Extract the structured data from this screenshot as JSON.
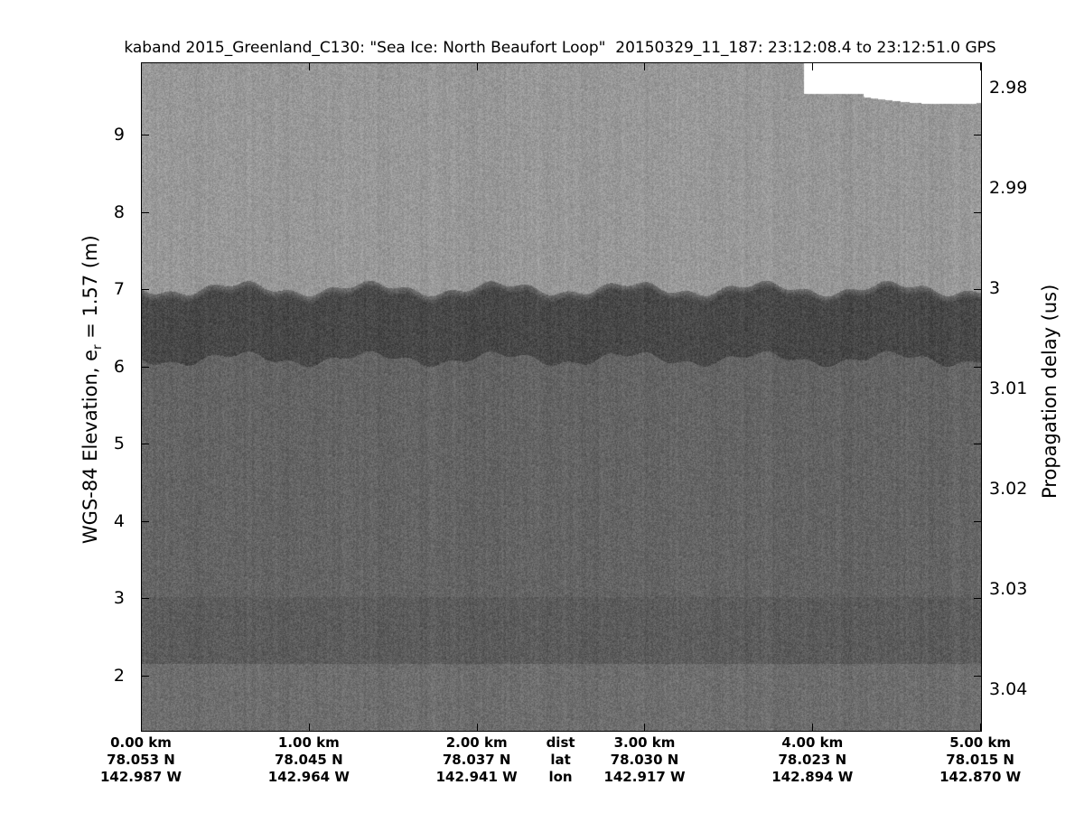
{
  "chart_data": {
    "type": "heatmap",
    "title": "kaband 2015_Greenland_C130: \"Sea Ice: North Beaufort Loop\"  20150329_11_187: 23:12:08.4 to 23:12:51.0 GPS",
    "ylabel_left": {
      "text": "WGS-84 Elevation, e",
      "subscript": "r",
      "suffix": " = 1.57 (m)"
    },
    "ylabel_right": "Propagation delay (us)",
    "y_left_ticks": [
      "9",
      "8",
      "7",
      "6",
      "5",
      "4",
      "3",
      "2"
    ],
    "y_left_values": [
      9,
      8,
      7,
      6,
      5,
      4,
      3,
      2
    ],
    "y_left_range": [
      1.27,
      9.94
    ],
    "y_right_ticks": [
      "2.98",
      "2.99",
      "3",
      "3.01",
      "3.02",
      "3.03",
      "3.04"
    ],
    "y_right_values": [
      2.98,
      2.99,
      3.0,
      3.01,
      3.02,
      3.03,
      3.04
    ],
    "y_right_range": [
      2.9775,
      3.0442
    ],
    "x_range_km": [
      0,
      5.01
    ],
    "x_ticks": [
      {
        "dist": "0.00 km",
        "lat": "78.053 N",
        "lon": "142.987 W",
        "km": 0
      },
      {
        "dist": "1.00 km",
        "lat": "78.045 N",
        "lon": "142.964 W",
        "km": 1
      },
      {
        "dist": "2.00 km",
        "lat": "78.037 N",
        "lon": "142.941 W",
        "km": 2
      },
      {
        "dist": "3.00 km",
        "lat": "78.030 N",
        "lon": "142.917 W",
        "km": 3
      },
      {
        "dist": "4.00 km",
        "lat": "78.023 N",
        "lon": "142.894 W",
        "km": 4
      },
      {
        "dist": "5.00 km",
        "lat": "78.015 N",
        "lon": "142.870 W",
        "km": 5
      }
    ],
    "x_row_labels": {
      "dist": "dist",
      "lat": "lat",
      "lon": "lon",
      "km": 2.5
    },
    "colormap": "gray",
    "surface_elevation_m": 6.7,
    "colors": {
      "above_surface": "#9a9a9a",
      "surface_layer": "#4a4a4a",
      "below_surface": "#666666",
      "no_data": "#ffffff"
    }
  }
}
